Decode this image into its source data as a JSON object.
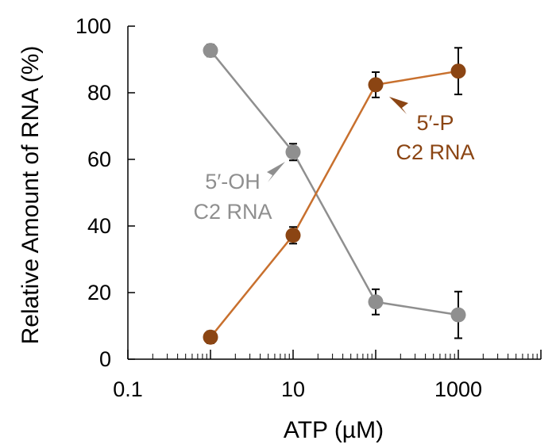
{
  "chart_data": {
    "type": "line",
    "xscale": "log",
    "xlabel": "ATP (µM)",
    "ylabel": "Relative Amount of RNA (%)",
    "xlim": [
      0.1,
      10000
    ],
    "ylim": [
      0,
      100
    ],
    "xticks": [
      {
        "value": 0.1,
        "label": "0.1"
      },
      {
        "value": 10,
        "label": "10"
      },
      {
        "value": 1000,
        "label": "1000"
      }
    ],
    "yticks": [
      {
        "value": 0,
        "label": "0"
      },
      {
        "value": 20,
        "label": "20"
      },
      {
        "value": 40,
        "label": "40"
      },
      {
        "value": 60,
        "label": "60"
      },
      {
        "value": 80,
        "label": "80"
      },
      {
        "value": 100,
        "label": "100"
      }
    ],
    "series": [
      {
        "id": "oh",
        "name_line1": "5′-OH",
        "name_line2": "C2 RNA",
        "color": "#8f8f8f",
        "x": [
          1,
          10,
          100,
          1000
        ],
        "y": [
          92.7,
          62.2,
          17.2,
          13.3
        ],
        "err": [
          1.8,
          2.5,
          3.8,
          7.0
        ]
      },
      {
        "id": "p",
        "name_line1": "5′-P",
        "name_line2": "C2 RNA",
        "color": "#8b4513",
        "line_color": "#c8702e",
        "x": [
          1,
          10,
          100,
          1000
        ],
        "y": [
          6.6,
          37.2,
          82.4,
          86.5
        ],
        "err": [
          1.8,
          2.5,
          3.8,
          7.0
        ]
      }
    ]
  }
}
